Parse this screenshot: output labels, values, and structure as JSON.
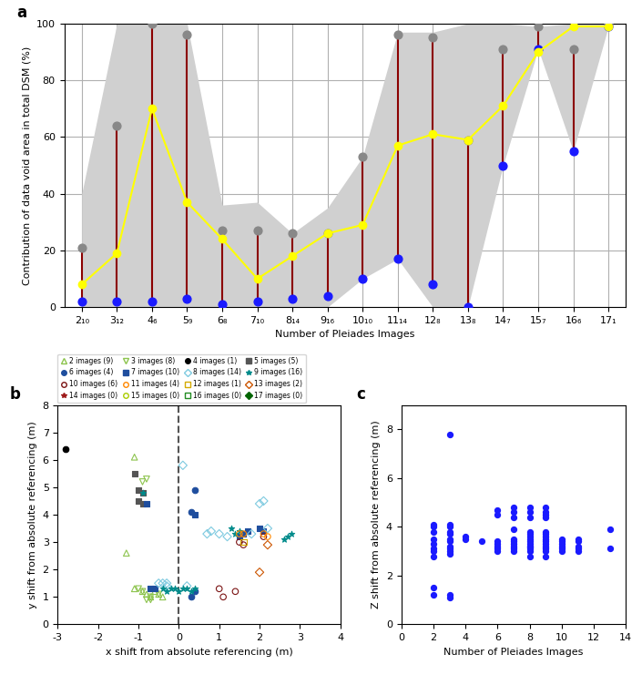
{
  "chart_data": [
    {
      "type": "combo",
      "title": "a",
      "x_label": "Number of Pleiades Images",
      "y_label": "Contribution of data void area in total DSM (%)",
      "categories": [
        "2₁₀",
        "3₁₂",
        "4₆",
        "5₉",
        "6₈",
        "7₁₀",
        "8₁₄",
        "9₁₆",
        "10₁₀",
        "11₁₄",
        "12₈",
        "13₈",
        "14₇",
        "15₇",
        "16₆",
        "17₁"
      ],
      "ylim": [
        0,
        100
      ],
      "yticks": [
        0,
        20,
        40,
        60,
        80,
        100
      ],
      "grid": true,
      "series": [
        {
          "type": "area",
          "color": "#d0d0d0",
          "lower": [
            0,
            0,
            0,
            0,
            0,
            0,
            0,
            0,
            10,
            17,
            0,
            0,
            50,
            91,
            55,
            99
          ],
          "upper": [
            40,
            100,
            100,
            100,
            36,
            37,
            26,
            35,
            53,
            97,
            97,
            100,
            100,
            99,
            100,
            100
          ]
        },
        {
          "type": "range",
          "color": "#8b0000",
          "lower": [
            2,
            2,
            2,
            3,
            1,
            2,
            3,
            4,
            10,
            17,
            8,
            0,
            50,
            91,
            55,
            99
          ],
          "upper": [
            21,
            64,
            100,
            96,
            27,
            27,
            26,
            26,
            53,
            96,
            95,
            59,
            91,
            99,
            91,
            100
          ]
        },
        {
          "type": "scatter",
          "color": "#888888",
          "marker": "circle",
          "values": [
            21,
            64,
            100,
            96,
            27,
            27,
            26,
            26,
            53,
            96,
            95,
            59,
            91,
            99,
            91,
            100
          ]
        },
        {
          "type": "scatter",
          "color": "#1a1aff",
          "marker": "circle",
          "values": [
            2,
            2,
            2,
            3,
            1,
            2,
            3,
            4,
            10,
            17,
            8,
            0,
            50,
            91,
            55,
            99
          ]
        },
        {
          "type": "line",
          "color": "yellow",
          "marker": "circle",
          "values": [
            8,
            19,
            70,
            37,
            24,
            10,
            18,
            26,
            29,
            57,
            61,
            59,
            71,
            90,
            99,
            99
          ]
        }
      ]
    },
    {
      "type": "scatter",
      "title": "b",
      "x_label": "x shift from absolute referencing (m)",
      "y_label": "y shift from absolute referencing (m)",
      "xlim": [
        -3,
        4
      ],
      "xticks": [
        -3,
        -2,
        -1,
        0,
        1,
        2,
        3,
        4
      ],
      "ylim": [
        0,
        8
      ],
      "yticks": [
        0,
        1,
        2,
        3,
        4,
        5,
        6,
        7,
        8
      ],
      "grid": false,
      "lines": [
        {
          "x": 0,
          "color": "#555555",
          "line_style": "dashed"
        }
      ],
      "series": [
        {
          "name": "2 images (9)",
          "color": "#8dc44e",
          "marker": "open_triangle_up",
          "x": [
            -1.1,
            -0.9,
            -0.8,
            -0.7,
            -0.6,
            -0.5,
            -0.4,
            -1.3,
            -1.1
          ],
          "y": [
            1.3,
            1.2,
            1.1,
            1.0,
            1.2,
            1.1,
            1.0,
            2.6,
            6.1
          ]
        },
        {
          "name": "3 images (8)",
          "color": "#8dc44e",
          "marker": "open_triangle_down",
          "x": [
            -1.0,
            -0.9,
            -0.8,
            -0.7,
            -0.5,
            -0.9,
            -0.8,
            -0.7
          ],
          "y": [
            1.3,
            1.2,
            0.9,
            1.0,
            1.1,
            5.2,
            5.3,
            0.9
          ]
        },
        {
          "name": "4 images (1)",
          "color": "#000000",
          "marker": "circle",
          "x": [
            -2.8
          ],
          "y": [
            6.4
          ]
        },
        {
          "name": "5 images (5)",
          "color": "#555555",
          "marker": "square",
          "x": [
            -1.1,
            -1.0,
            -1.0,
            -0.9,
            -0.9
          ],
          "y": [
            5.5,
            4.9,
            4.5,
            4.4,
            4.8
          ]
        },
        {
          "name": "6 images (4)",
          "color": "#1f4e9e",
          "marker": "circle",
          "x": [
            0.4,
            0.3,
            0.3,
            0.4
          ],
          "y": [
            4.9,
            4.1,
            1.0,
            1.2
          ]
        },
        {
          "name": "7 images (10)",
          "color": "#1f4e9e",
          "marker": "square",
          "x": [
            -0.8,
            -0.7,
            -0.6,
            0.4,
            1.6,
            1.5,
            1.6,
            1.7,
            2.0,
            2.1
          ],
          "y": [
            4.4,
            1.3,
            1.3,
            4.0,
            3.3,
            3.2,
            3.3,
            3.4,
            3.5,
            3.4
          ]
        },
        {
          "name": "8 images (14)",
          "color": "#7ecae0",
          "marker": "open_diamond",
          "x": [
            0.1,
            -0.5,
            -0.4,
            -0.3,
            -0.3,
            0.2,
            0.7,
            0.8,
            1.0,
            1.2,
            1.8,
            2.0,
            2.1,
            2.2
          ],
          "y": [
            5.8,
            1.5,
            1.5,
            1.4,
            1.5,
            1.4,
            3.3,
            3.4,
            3.3,
            3.2,
            3.3,
            4.4,
            4.5,
            3.5
          ]
        },
        {
          "name": "9 images (16)",
          "color": "#008b8b",
          "marker": "star",
          "x": [
            -0.9,
            -0.4,
            -0.3,
            -0.2,
            -0.1,
            0.0,
            0.1,
            0.2,
            0.3,
            0.4,
            1.3,
            1.4,
            1.5,
            2.6,
            2.7,
            2.8
          ],
          "y": [
            4.8,
            1.3,
            1.2,
            1.3,
            1.3,
            1.2,
            1.3,
            1.3,
            1.2,
            1.3,
            3.5,
            3.3,
            3.4,
            3.1,
            3.2,
            3.3
          ]
        },
        {
          "name": "10 images (6)",
          "color": "#7b1414",
          "marker": "open_circle",
          "x": [
            1.0,
            1.1,
            1.4,
            1.5,
            1.6,
            2.1
          ],
          "y": [
            1.3,
            1.0,
            1.2,
            3.0,
            2.9,
            3.2
          ]
        },
        {
          "name": "11 images (4)",
          "color": "#ff8800",
          "marker": "open_circle",
          "x": [
            1.5,
            1.6,
            2.1,
            2.2
          ],
          "y": [
            3.3,
            3.3,
            3.3,
            3.2
          ]
        },
        {
          "name": "12 images (1)",
          "color": "#d4aa00",
          "marker": "open_square",
          "x": [
            1.6
          ],
          "y": [
            3.0
          ]
        },
        {
          "name": "13 images (2)",
          "color": "#cc5500",
          "marker": "open_diamond",
          "x": [
            2.0,
            2.2
          ],
          "y": [
            1.9,
            2.9
          ]
        },
        {
          "name": "14 images (0)",
          "color": "#9e1a1a",
          "marker": "star",
          "x": [],
          "y": []
        },
        {
          "name": "15 images (0)",
          "color": "#aacc00",
          "marker": "open_circle",
          "x": [],
          "y": []
        },
        {
          "name": "16 images (0)",
          "color": "#228b22",
          "marker": "open_square",
          "x": [],
          "y": []
        },
        {
          "name": "17 images (0)",
          "color": "#006400",
          "marker": "diamond",
          "x": [],
          "y": []
        }
      ]
    },
    {
      "type": "scatter",
      "title": "c",
      "x_label": "Number of Pleiades Images",
      "y_label": "Z shift from absolute referencing (m)",
      "xlim": [
        0,
        14
      ],
      "xticks": [
        0,
        2,
        4,
        6,
        8,
        10,
        12,
        14
      ],
      "ylim": [
        0,
        9
      ],
      "yticks": [
        0,
        2,
        4,
        6,
        8
      ],
      "grid": false,
      "color": "#1a1aff",
      "x": [
        2,
        2,
        2,
        2,
        2,
        2,
        2,
        2,
        2,
        2,
        3,
        3,
        3,
        3,
        3,
        3,
        3,
        3,
        3,
        3,
        3,
        3,
        3,
        4,
        4,
        5,
        6,
        6,
        6,
        6,
        6,
        6,
        6,
        7,
        7,
        7,
        7,
        7,
        7,
        7,
        7,
        7,
        7,
        8,
        8,
        8,
        8,
        8,
        8,
        8,
        8,
        8,
        8,
        8,
        8,
        8,
        8,
        9,
        9,
        9,
        9,
        9,
        9,
        9,
        9,
        9,
        9,
        9,
        9,
        9,
        9,
        10,
        10,
        10,
        10,
        10,
        10,
        11,
        11,
        11,
        11,
        11,
        13,
        13
      ],
      "y": [
        1.2,
        1.5,
        2.8,
        3.0,
        3.1,
        3.3,
        3.5,
        3.8,
        4.0,
        4.1,
        1.1,
        1.2,
        2.9,
        3.0,
        3.1,
        3.2,
        3.4,
        3.5,
        3.7,
        3.8,
        4.0,
        4.1,
        7.8,
        3.5,
        3.6,
        3.4,
        3.0,
        3.1,
        3.2,
        3.3,
        3.4,
        4.5,
        4.7,
        3.0,
        3.1,
        3.2,
        3.3,
        3.4,
        3.5,
        3.9,
        4.4,
        4.6,
        4.8,
        2.8,
        3.0,
        3.1,
        3.2,
        3.2,
        3.3,
        3.4,
        3.5,
        3.6,
        3.7,
        3.8,
        4.4,
        4.6,
        4.8,
        2.8,
        3.0,
        3.1,
        3.2,
        3.3,
        3.4,
        3.5,
        3.6,
        3.7,
        3.8,
        4.4,
        4.5,
        4.6,
        4.8,
        3.0,
        3.1,
        3.2,
        3.3,
        3.4,
        3.5,
        3.0,
        3.1,
        3.2,
        3.4,
        3.5,
        3.1,
        3.9
      ]
    }
  ]
}
